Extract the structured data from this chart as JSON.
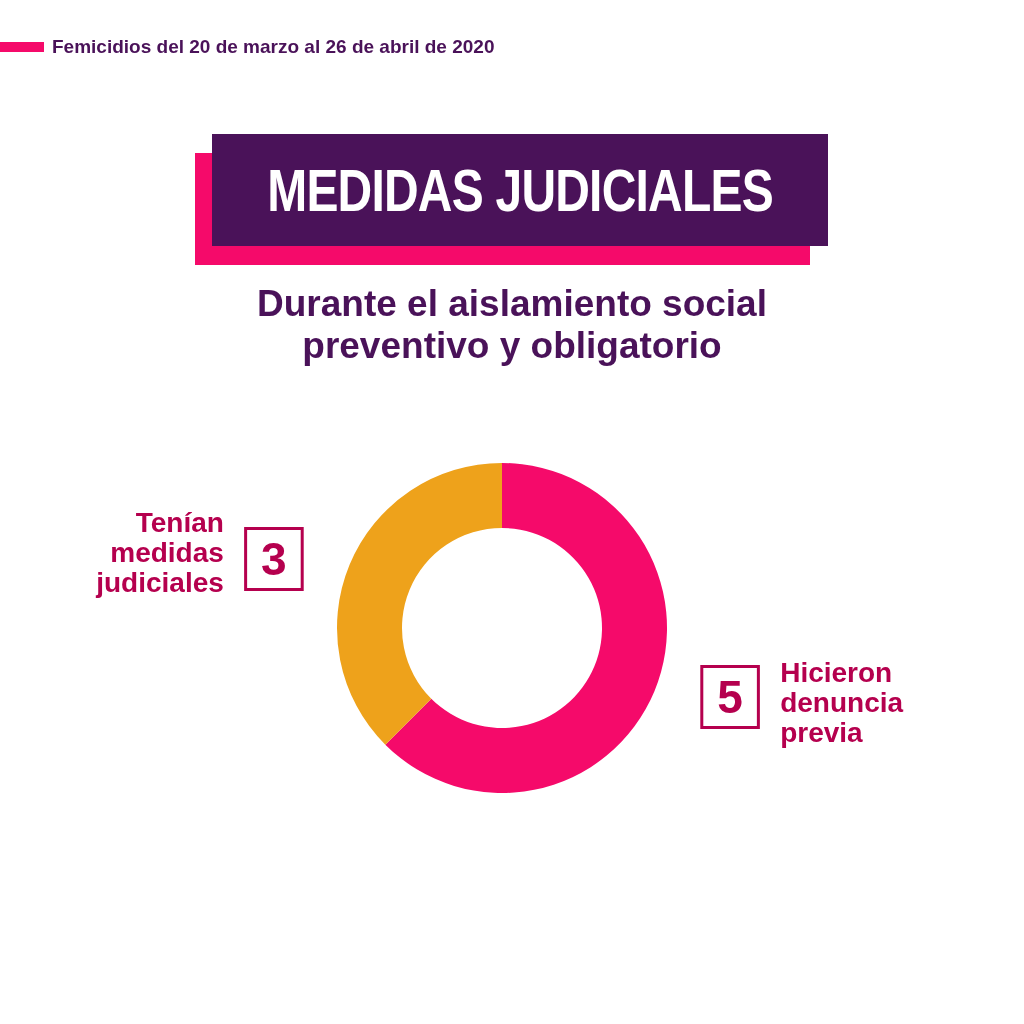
{
  "chart_data": {
    "type": "donut",
    "title": "MEDIDAS JUDICIALES",
    "subtitle": "Durante el aislamiento social preventivo y obligatorio",
    "annotations": [
      "Femicidios del 20 de marzo al 26 de abril de 2020"
    ],
    "categories": [
      "Hicieron denuncia previa",
      "Tenían medidas judiciales"
    ],
    "values": [
      5,
      3
    ],
    "colors": [
      "#f50a6a",
      "#eea21b"
    ],
    "data_labels": true,
    "legend": false
  }
}
